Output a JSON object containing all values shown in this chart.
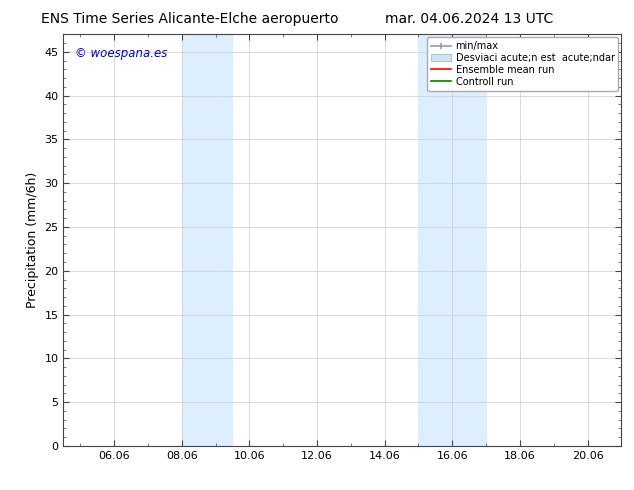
{
  "title_left": "ENS Time Series Alicante-Elche aeropuerto",
  "title_right": "mar. 04.06.2024 13 UTC",
  "ylabel": "Precipitation (mm/6h)",
  "watermark": "© woespana.es",
  "watermark_color": "#0000cc",
  "ylim": [
    0,
    47
  ],
  "yticks": [
    0,
    5,
    10,
    15,
    20,
    25,
    30,
    35,
    40,
    45
  ],
  "xtick_labels": [
    "06.06",
    "08.06",
    "10.06",
    "12.06",
    "14.06",
    "16.06",
    "18.06",
    "20.06"
  ],
  "xtick_positions": [
    6,
    8,
    10,
    12,
    14,
    16,
    18,
    20
  ],
  "xlim": [
    4.5,
    21.0
  ],
  "shaded_regions": [
    {
      "xmin": 8.0,
      "xmax": 9.5,
      "color": "#ddeeff",
      "alpha": 1.0
    },
    {
      "xmin": 15.0,
      "xmax": 17.0,
      "color": "#ddeeff",
      "alpha": 1.0
    }
  ],
  "background_color": "#ffffff",
  "legend_minmax_color": "#999999",
  "legend_std_color": "#cce4f7",
  "legend_ens_color": "#ff0000",
  "legend_ctrl_color": "#008000",
  "title_fontsize": 10,
  "axis_fontsize": 9,
  "tick_fontsize": 8,
  "legend_label_1": "min/max",
  "legend_label_2": "Desviaci acute;n est  acute;ndar",
  "legend_label_3": "Ensemble mean run",
  "legend_label_4": "Controll run"
}
